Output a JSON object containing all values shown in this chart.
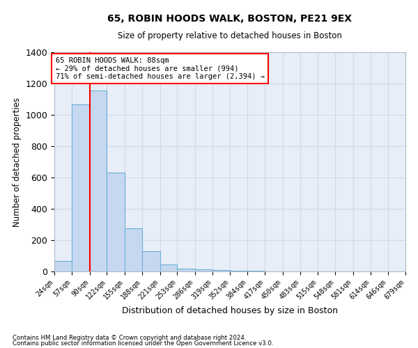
{
  "title1": "65, ROBIN HOODS WALK, BOSTON, PE21 9EX",
  "title2": "Size of property relative to detached houses in Boston",
  "xlabel": "Distribution of detached houses by size in Boston",
  "ylabel": "Number of detached properties",
  "bar_values": [
    65,
    1065,
    1155,
    630,
    275,
    130,
    45,
    20,
    15,
    10,
    5,
    3,
    2,
    1,
    1,
    1,
    0,
    0,
    0,
    0
  ],
  "bin_edges": [
    24,
    57,
    90,
    122,
    155,
    188,
    221,
    253,
    286,
    319,
    352,
    384,
    417,
    450,
    483,
    515,
    548,
    581,
    614,
    646,
    679
  ],
  "bar_color": "#c5d8f0",
  "bar_edgecolor": "#6baed6",
  "red_line_x": 90,
  "annotation_line1": "65 ROBIN HOODS WALK: 88sqm",
  "annotation_line2": "← 29% of detached houses are smaller (994)",
  "annotation_line3": "71% of semi-detached houses are larger (2,394) →",
  "annotation_box_color": "white",
  "annotation_box_edgecolor": "red",
  "ylim": [
    0,
    1400
  ],
  "yticks": [
    0,
    200,
    400,
    600,
    800,
    1000,
    1200,
    1400
  ],
  "footnote1": "Contains HM Land Registry data © Crown copyright and database right 2024.",
  "footnote2": "Contains public sector information licensed under the Open Government Licence v3.0.",
  "grid_color": "#d0d8e8",
  "background_color": "#e8eef8"
}
